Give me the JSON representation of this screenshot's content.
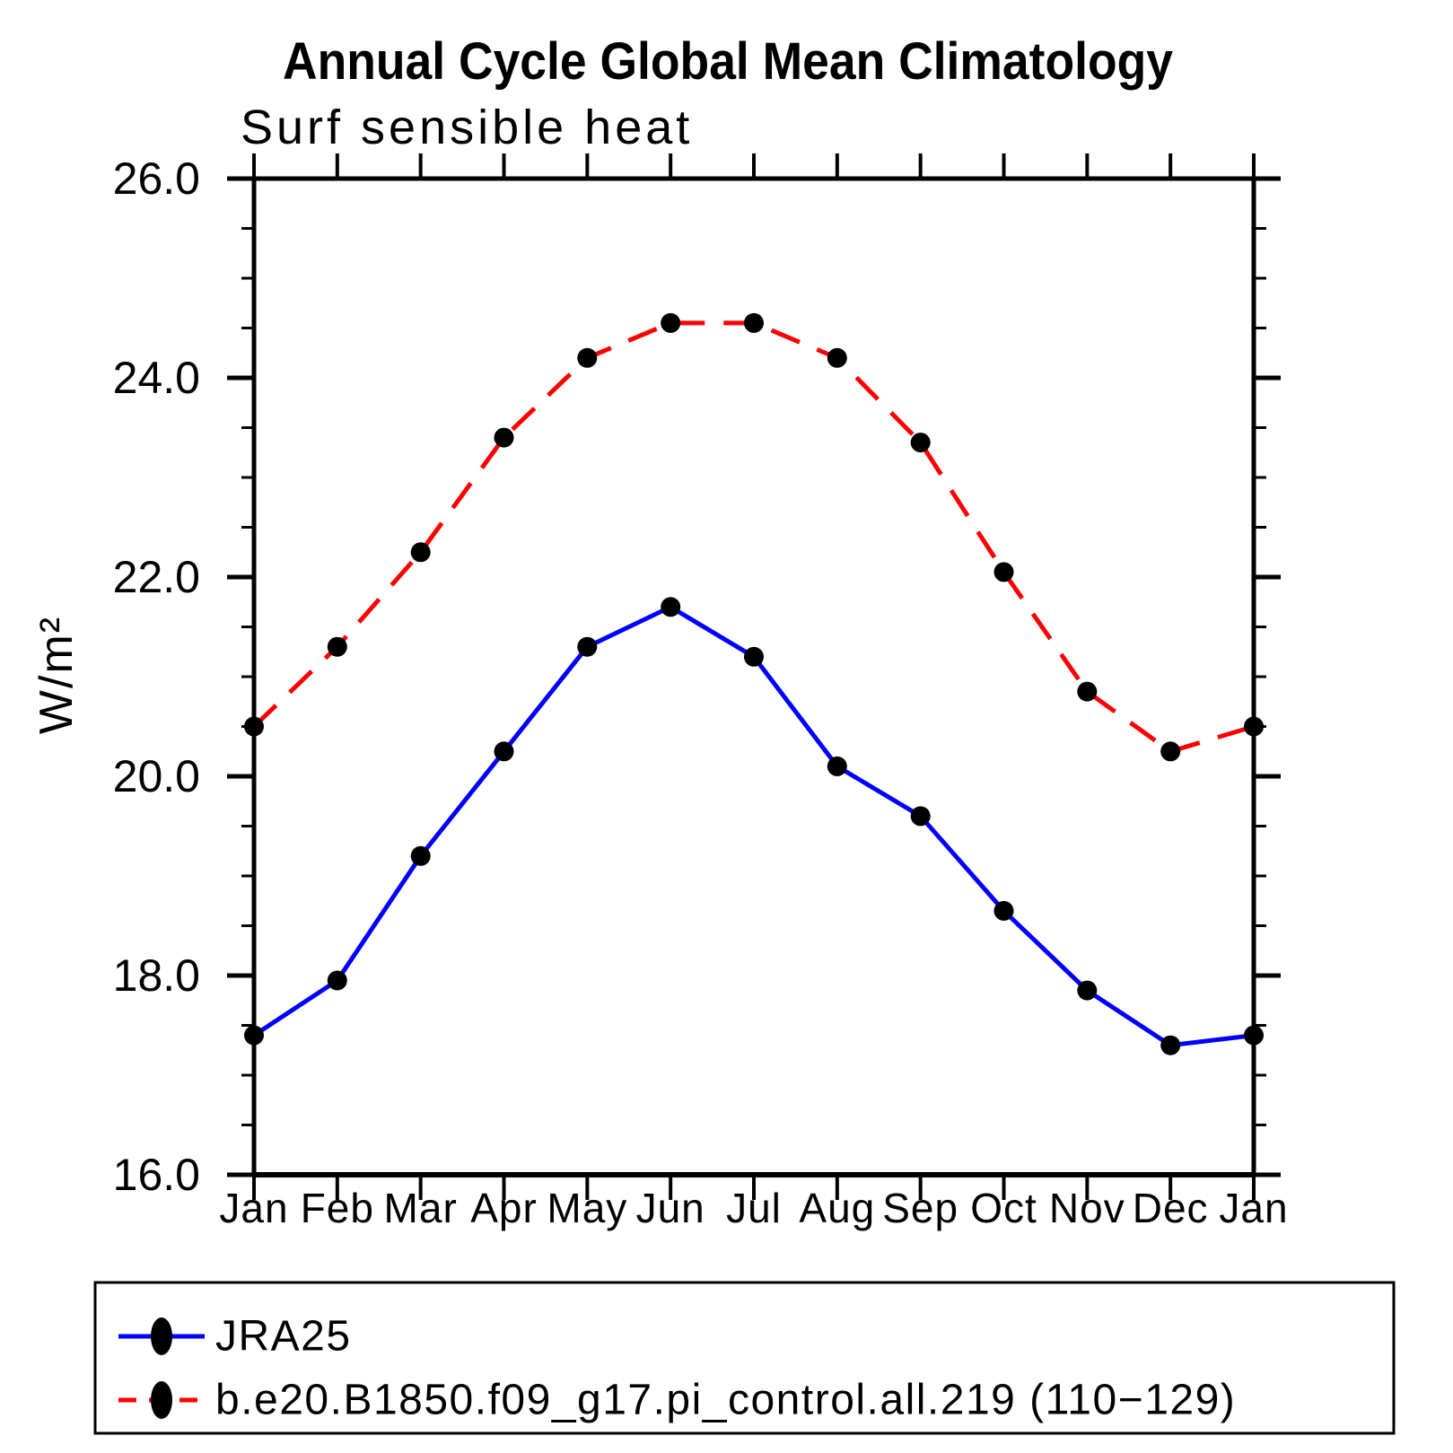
{
  "chart_data": {
    "type": "line",
    "title": "Annual Cycle Global Mean Climatology",
    "subtitle": "Surf sensible heat",
    "ylabel": "W/m²",
    "xlabel": "",
    "categories": [
      "Jan",
      "Feb",
      "Mar",
      "Apr",
      "May",
      "Jun",
      "Jul",
      "Aug",
      "Sep",
      "Oct",
      "Nov",
      "Dec",
      "Jan"
    ],
    "ylim": [
      16.0,
      26.0
    ],
    "y_major_step": 2.0,
    "y_minor_step": 0.5,
    "y_tick_labels": [
      "26.0",
      "24.0",
      "22.0",
      "20.0",
      "18.0",
      "16.0"
    ],
    "grid": false,
    "legend_position": "bottom",
    "axis_color": "#000000",
    "text_color": "#000000",
    "marker_shape": "filled-circle",
    "series": [
      {
        "name": "JRA25",
        "color": "#0000ff",
        "line_style": "solid",
        "marker_color": "#000000",
        "values": [
          17.4,
          17.95,
          19.2,
          20.25,
          21.3,
          21.7,
          21.2,
          20.1,
          19.6,
          18.65,
          17.85,
          17.3,
          17.4
        ]
      },
      {
        "name": "b.e20.B1850.f09_g17.pi_control.all.219 (110−129)",
        "color": "#ff0000",
        "line_style": "dashed",
        "marker_color": "#000000",
        "values": [
          20.5,
          21.3,
          22.25,
          23.4,
          24.2,
          24.55,
          24.55,
          24.2,
          23.35,
          22.05,
          20.85,
          20.25,
          20.5
        ]
      }
    ]
  }
}
